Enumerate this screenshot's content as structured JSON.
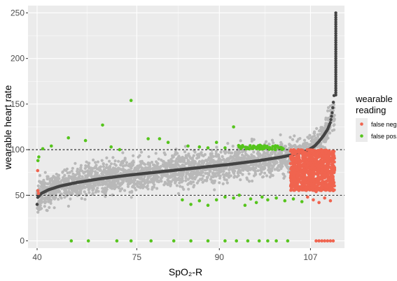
{
  "chart_data": {
    "type": "scatter",
    "xlabel": "SpO₂-R",
    "ylabel": "wearable heart rate",
    "x_ticks": [
      "40",
      "75",
      "90",
      "107"
    ],
    "y_ticks": [
      0,
      50,
      100,
      150,
      200,
      250
    ],
    "ylim": [
      -8,
      258
    ],
    "grid": true,
    "reference_lines": [
      50,
      100
    ],
    "legend": {
      "title_lines": [
        "wearable",
        "reading"
      ],
      "placement": "right",
      "entries": [
        {
          "label": "false neg.",
          "color": "#f0644f"
        },
        {
          "label": "false pos.",
          "color": "#55c41c"
        }
      ]
    },
    "colors": {
      "panel": "#ebebeb",
      "grid": "#ffffff",
      "reference": "#000000",
      "device": "#b8b8b8",
      "curve": "#444444"
    },
    "series": [
      {
        "role": "true-heart-rate-curve",
        "color": "#444444",
        "points": [
          [
            0,
            40
          ],
          [
            0,
            47
          ],
          [
            1.5,
            52
          ],
          [
            4,
            56
          ],
          [
            8,
            60
          ],
          [
            14,
            64
          ],
          [
            22,
            68
          ],
          [
            32,
            72
          ],
          [
            44,
            76
          ],
          [
            56,
            80
          ],
          [
            68,
            84
          ],
          [
            78,
            88
          ],
          [
            86,
            92
          ],
          [
            92,
            96
          ],
          [
            95.5,
            100
          ],
          [
            97.5,
            104
          ],
          [
            99,
            109
          ],
          [
            100.5,
            115
          ],
          [
            102,
            122
          ],
          [
            103,
            130
          ],
          [
            103.6,
            140
          ],
          [
            104,
            150
          ],
          [
            104.3,
            160
          ],
          [
            104.55,
            180
          ],
          [
            104.75,
            200
          ],
          [
            104.9,
            225
          ],
          [
            105,
            252
          ]
        ]
      },
      {
        "name": "false pos.",
        "color": "#55c41c",
        "points": [
          [
            2,
            101
          ],
          [
            5,
            104
          ],
          [
            11,
            113
          ],
          [
            17,
            110
          ],
          [
            23,
            127
          ],
          [
            26,
            103
          ],
          [
            29,
            100
          ],
          [
            33,
            154
          ],
          [
            39,
            112
          ],
          [
            43,
            112
          ],
          [
            46,
            108
          ],
          [
            53,
            104
          ],
          [
            57,
            103
          ],
          [
            60,
            102
          ],
          [
            63,
            108
          ],
          [
            66,
            102
          ],
          [
            69,
            125
          ],
          [
            72,
            103
          ],
          [
            74,
            102
          ],
          [
            76,
            104
          ],
          [
            51,
            45
          ],
          [
            54,
            40
          ],
          [
            57,
            44
          ],
          [
            60,
            39
          ],
          [
            63,
            45
          ],
          [
            66,
            48
          ],
          [
            69,
            47
          ],
          [
            71,
            50
          ],
          [
            73,
            39
          ],
          [
            75,
            46
          ],
          [
            77,
            42
          ],
          [
            79,
            48
          ],
          [
            81,
            45
          ],
          [
            84,
            47
          ],
          [
            87,
            44
          ],
          [
            90,
            46
          ],
          [
            93,
            43
          ],
          [
            0.3,
            88
          ],
          [
            0.6,
            92
          ],
          [
            12,
            0
          ],
          [
            18,
            0
          ],
          [
            28,
            0
          ],
          [
            33,
            0
          ],
          [
            40,
            0
          ],
          [
            48,
            0
          ],
          [
            54,
            0
          ],
          [
            60,
            0
          ],
          [
            66,
            0
          ],
          [
            70,
            0
          ],
          [
            74,
            0
          ],
          [
            78,
            0
          ],
          [
            81,
            0
          ],
          [
            84,
            0
          ],
          [
            88,
            0
          ]
        ]
      },
      {
        "name": "false neg.",
        "color": "#f0644f",
        "points": [
          [
            0.3,
            55
          ],
          [
            0.2,
            77
          ],
          [
            0.5,
            52
          ],
          [
            89,
            75
          ],
          [
            90,
            68
          ],
          [
            91,
            57
          ],
          [
            92,
            80
          ],
          [
            93,
            64
          ],
          [
            94,
            95
          ],
          [
            94,
            71
          ],
          [
            95,
            58
          ],
          [
            96,
            86
          ],
          [
            96,
            66
          ],
          [
            97,
            73
          ],
          [
            98,
            90
          ],
          [
            98,
            54
          ],
          [
            99,
            62
          ],
          [
            100,
            78
          ],
          [
            100,
            96
          ],
          [
            101,
            69
          ],
          [
            101,
            56
          ],
          [
            102,
            84
          ],
          [
            102,
            61
          ],
          [
            103,
            74
          ],
          [
            103,
            91
          ],
          [
            104,
            67
          ],
          [
            104,
            81
          ],
          [
            91,
            88
          ],
          [
            93,
            98
          ],
          [
            95,
            76
          ],
          [
            97,
            60
          ],
          [
            99,
            92
          ],
          [
            101,
            82
          ],
          [
            103,
            58
          ],
          [
            92,
            66
          ],
          [
            96,
            93
          ],
          [
            100,
            64
          ],
          [
            102,
            72
          ],
          [
            104,
            88
          ],
          [
            95,
            48
          ],
          [
            97,
            45
          ],
          [
            99,
            42
          ],
          [
            101,
            47
          ],
          [
            103,
            44
          ],
          [
            98,
            0
          ],
          [
            99,
            0
          ],
          [
            100,
            0
          ],
          [
            101,
            0
          ],
          [
            102,
            0
          ],
          [
            103,
            0
          ],
          [
            104,
            0
          ]
        ]
      }
    ]
  }
}
